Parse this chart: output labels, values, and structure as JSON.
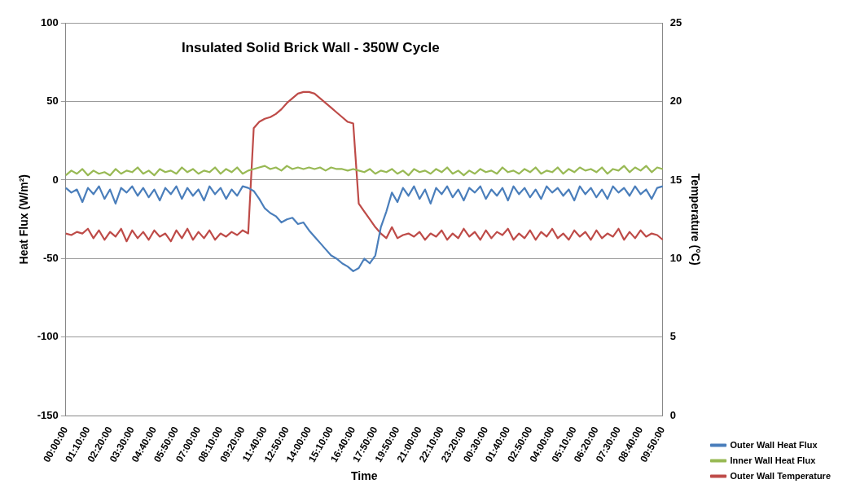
{
  "chart_data": {
    "type": "line",
    "title": "Insulated Solid Brick Wall - 350W Cycle",
    "xlabel": "Time",
    "ylabel": "Heat Flux (W/m²)",
    "y2label": "Temperature (°C)",
    "categories": [
      "00:00:00",
      null,
      null,
      null,
      "01:10:00",
      null,
      null,
      null,
      "02:20:00",
      null,
      null,
      null,
      "03:30:00",
      null,
      null,
      null,
      "04:40:00",
      null,
      null,
      null,
      "05:50:00",
      null,
      null,
      null,
      "07:00:00",
      null,
      null,
      null,
      "08:10:00",
      null,
      null,
      null,
      "09:20:00",
      null,
      null,
      null,
      "11:40:00",
      null,
      null,
      null,
      "12:50:00",
      null,
      null,
      null,
      "14:00:00",
      null,
      null,
      null,
      "15:10:00",
      null,
      null,
      null,
      "16:40:00",
      null,
      null,
      null,
      "17:50:00",
      null,
      null,
      null,
      "19:50:00",
      null,
      null,
      null,
      "21:00:00",
      null,
      null,
      null,
      "22:10:00",
      null,
      null,
      null,
      "23:20:00",
      null,
      null,
      null,
      "00:30:00",
      null,
      null,
      null,
      "01:40:00",
      null,
      null,
      null,
      "02:50:00",
      null,
      null,
      null,
      "04:00:00",
      null,
      null,
      null,
      "05:10:00",
      null,
      null,
      null,
      "06:20:00",
      null,
      null,
      null,
      "07:30:00",
      null,
      null,
      null,
      "08:40:00",
      null,
      null,
      null,
      "09:50:00"
    ],
    "series": [
      {
        "name": "Outer Wall Heat Flux",
        "color": "#4a7ebb",
        "values": [
          -5,
          -8,
          -6,
          -14,
          -5,
          -9,
          -4,
          -12,
          -6,
          -15,
          -5,
          -8,
          -4,
          -10,
          -5,
          -11,
          -6,
          -13,
          -5,
          -9,
          -4,
          -12,
          -5,
          -10,
          -6,
          -13,
          -4,
          -9,
          -5,
          -12,
          -6,
          -10,
          -4,
          -5,
          -7,
          -12,
          -18,
          -21,
          -23,
          -27,
          -25,
          -24,
          -28,
          -27,
          -32,
          -36,
          -40,
          -44,
          -48,
          -50,
          -53,
          -55,
          -58,
          -56,
          -50,
          -53,
          -48,
          -30,
          -20,
          -8,
          -14,
          -5,
          -10,
          -4,
          -12,
          -6,
          -15,
          -5,
          -9,
          -4,
          -11,
          -6,
          -13,
          -5,
          -8,
          -4,
          -12,
          -6,
          -10,
          -5,
          -13,
          -4,
          -9,
          -5,
          -11,
          -6,
          -12,
          -4,
          -8,
          -5,
          -10,
          -6,
          -13,
          -4,
          -9,
          -5,
          -11,
          -6,
          -12,
          -4,
          -8,
          -5,
          -10,
          -4,
          -9,
          -6,
          -12,
          -5,
          -4
        ]
      },
      {
        "name": "Inner Wall Heat Flux",
        "color": "#98b954",
        "values": [
          3,
          6,
          4,
          7,
          3,
          6,
          4,
          5,
          3,
          7,
          4,
          6,
          5,
          8,
          4,
          6,
          3,
          7,
          5,
          6,
          4,
          8,
          5,
          7,
          4,
          6,
          5,
          8,
          4,
          7,
          5,
          8,
          4,
          6,
          7,
          8,
          9,
          7,
          8,
          6,
          9,
          7,
          8,
          7,
          8,
          7,
          8,
          6,
          8,
          7,
          7,
          6,
          7,
          6,
          5,
          7,
          4,
          6,
          5,
          7,
          4,
          6,
          3,
          7,
          5,
          6,
          4,
          7,
          5,
          8,
          4,
          6,
          3,
          6,
          4,
          7,
          5,
          6,
          4,
          8,
          5,
          6,
          4,
          7,
          5,
          8,
          4,
          6,
          5,
          8,
          4,
          7,
          5,
          8,
          6,
          7,
          5,
          8,
          4,
          7,
          6,
          9,
          5,
          8,
          6,
          9,
          5,
          8,
          7
        ]
      },
      {
        "name": "Outer Wall Temperature",
        "color": "#be4b48",
        "axis": "y2",
        "values": [
          11.6,
          11.5,
          11.7,
          11.6,
          11.9,
          11.3,
          11.8,
          11.2,
          11.7,
          11.4,
          11.9,
          11.1,
          11.8,
          11.3,
          11.7,
          11.2,
          11.8,
          11.4,
          11.6,
          11.1,
          11.8,
          11.3,
          11.9,
          11.2,
          11.7,
          11.3,
          11.8,
          11.2,
          11.6,
          11.4,
          11.7,
          11.5,
          11.8,
          11.6,
          18.3,
          18.7,
          18.9,
          19.0,
          19.2,
          19.5,
          19.9,
          20.2,
          20.5,
          20.6,
          20.6,
          20.5,
          20.2,
          19.9,
          19.6,
          19.3,
          19.0,
          18.7,
          18.6,
          13.5,
          13.0,
          12.5,
          12.0,
          11.6,
          11.3,
          12.0,
          11.3,
          11.5,
          11.6,
          11.4,
          11.7,
          11.2,
          11.6,
          11.4,
          11.8,
          11.2,
          11.6,
          11.3,
          11.9,
          11.4,
          11.7,
          11.2,
          11.8,
          11.3,
          11.7,
          11.5,
          11.9,
          11.2,
          11.6,
          11.3,
          11.8,
          11.2,
          11.7,
          11.4,
          11.9,
          11.3,
          11.6,
          11.2,
          11.8,
          11.4,
          11.7,
          11.2,
          11.8,
          11.3,
          11.6,
          11.4,
          11.9,
          11.2,
          11.7,
          11.3,
          11.8,
          11.4,
          11.6,
          11.5,
          11.2
        ]
      }
    ],
    "ylim": [
      -150,
      100
    ],
    "yticks": [
      -150,
      -100,
      -50,
      0,
      50,
      100
    ],
    "y2lim": [
      0,
      25
    ],
    "y2ticks": [
      0,
      5,
      10,
      15,
      20,
      25
    ],
    "grid": "y",
    "legend": "bottom right",
    "marker": "none",
    "line_style": "solid"
  }
}
